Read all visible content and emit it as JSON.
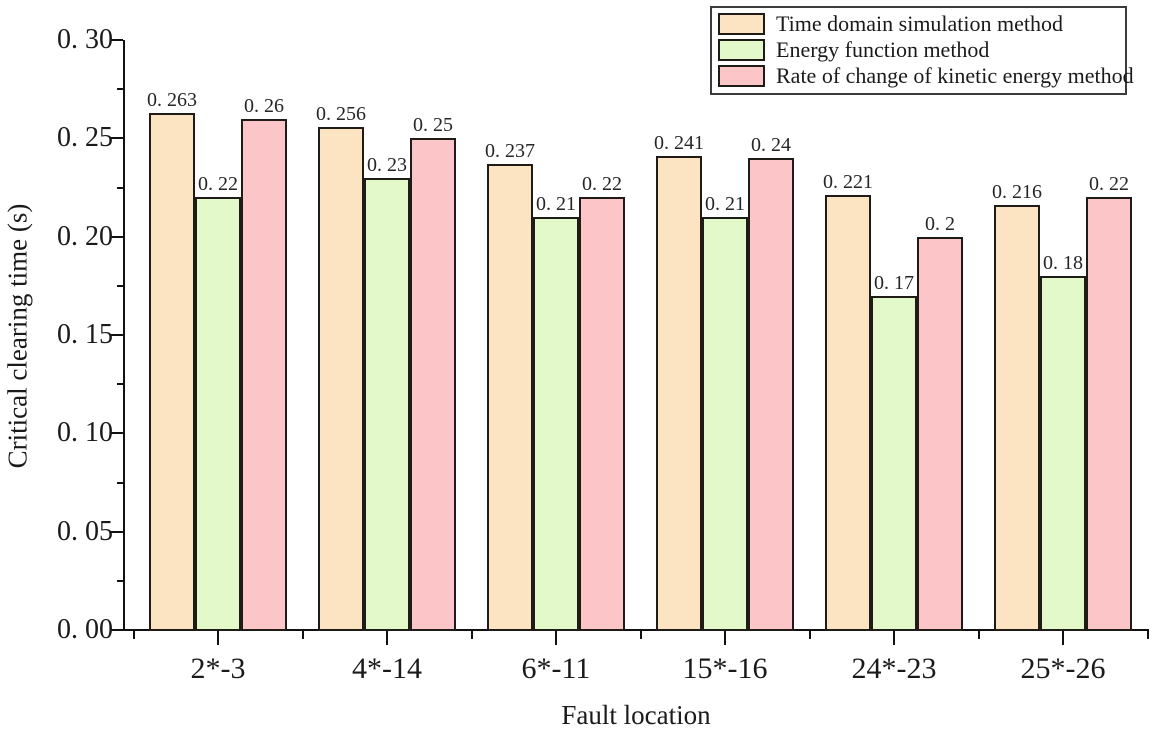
{
  "chart_data": {
    "type": "bar",
    "title": "",
    "xlabel": "Fault location",
    "ylabel": "Critical clearing time (s)",
    "ylim": [
      0,
      0.3
    ],
    "ytick_interval": 0.05,
    "yminor_interval": 0.025,
    "grid": false,
    "legend_position": "top-right",
    "axis_color": "#111111",
    "bar_border_color": "#1f1b17",
    "yticks": [
      {
        "value": 0.0,
        "label": "0. 00"
      },
      {
        "value": 0.05,
        "label": "0. 05"
      },
      {
        "value": 0.1,
        "label": "0. 10"
      },
      {
        "value": 0.15,
        "label": "0. 15"
      },
      {
        "value": 0.2,
        "label": "0. 20"
      },
      {
        "value": 0.25,
        "label": "0. 25"
      },
      {
        "value": 0.3,
        "label": "0. 30"
      }
    ],
    "categories": [
      "2*-3",
      "4*-14",
      "6*-11",
      "15*-16",
      "24*-23",
      "25*-26"
    ],
    "series": [
      {
        "name": "Time domain simulation method",
        "color": "#FCE3C2",
        "values": [
          0.263,
          0.256,
          0.237,
          0.241,
          0.221,
          0.216
        ],
        "labels": [
          "0. 263",
          "0. 256",
          "0. 237",
          "0. 241",
          "0. 221",
          "0. 216"
        ]
      },
      {
        "name": "Energy function method",
        "color": "#E3F9CA",
        "values": [
          0.22,
          0.23,
          0.21,
          0.21,
          0.17,
          0.18
        ],
        "labels": [
          "0. 22",
          "0. 23",
          "0. 21",
          "0. 21",
          "0. 17",
          "0. 18"
        ]
      },
      {
        "name": "Rate of change of kinetic energy method",
        "color": "#FCC5C8",
        "values": [
          0.26,
          0.25,
          0.22,
          0.24,
          0.2,
          0.22
        ],
        "labels": [
          "0. 26",
          "0. 25",
          "0. 22",
          "0. 24",
          "0. 2",
          "0. 22"
        ]
      }
    ]
  }
}
